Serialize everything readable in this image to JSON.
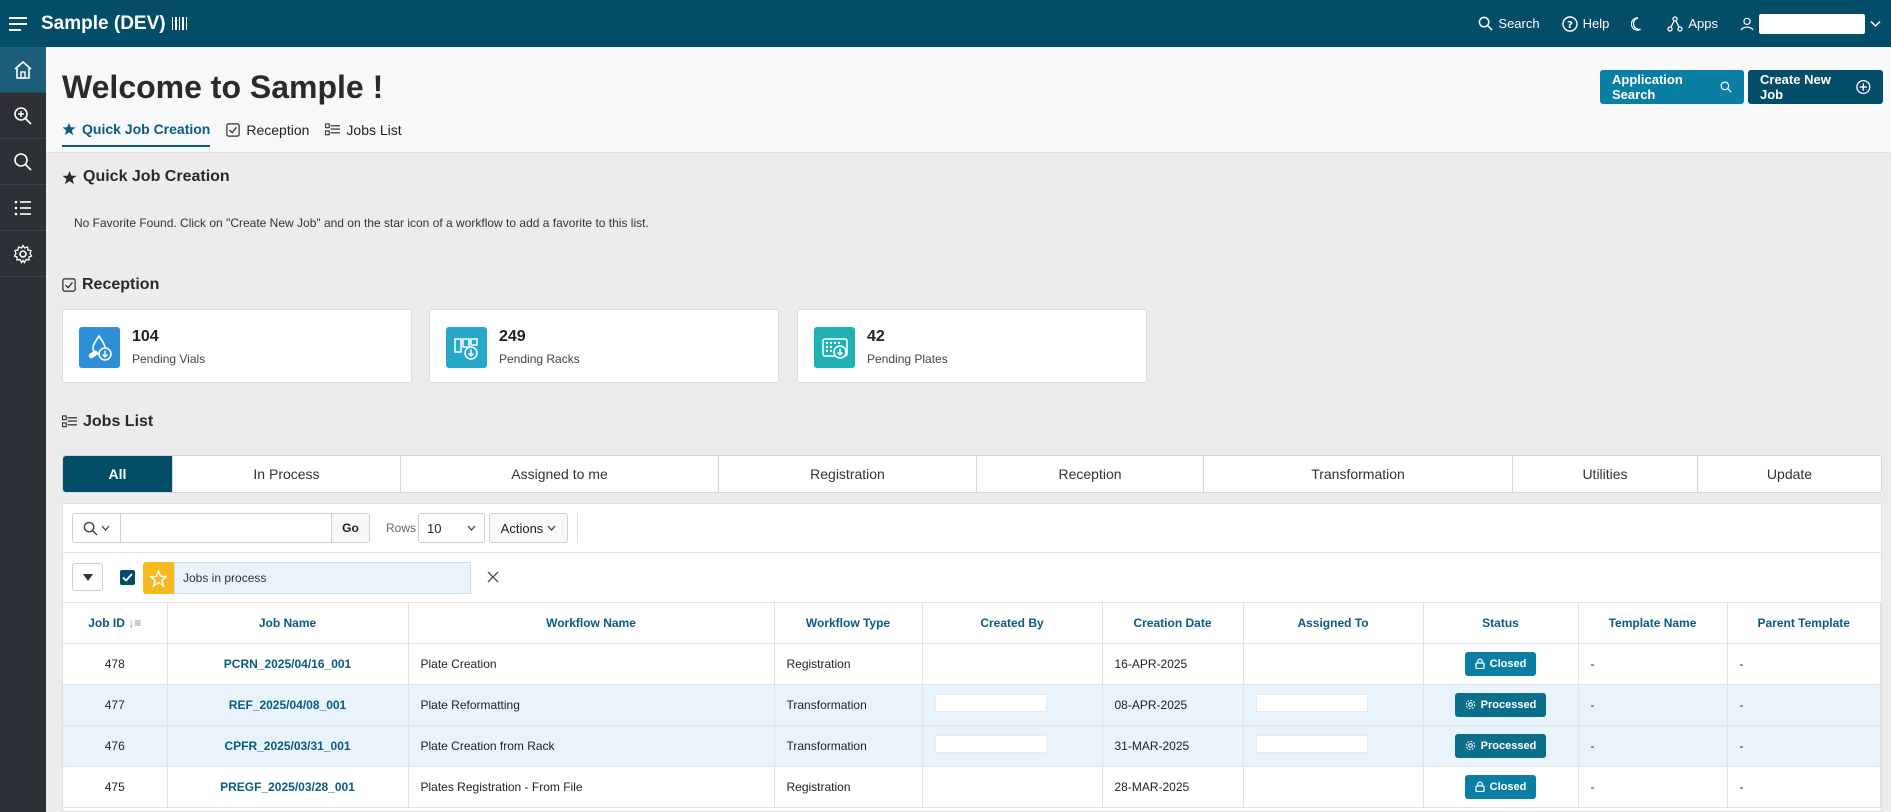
{
  "header": {
    "app_title": "Sample (DEV)",
    "search_label": "Search",
    "help_label": "Help",
    "apps_label": "Apps"
  },
  "sidebar": {
    "items": [
      {
        "name": "home",
        "icon": "home-icon",
        "active": true
      },
      {
        "name": "zoom",
        "icon": "zoom-in-icon"
      },
      {
        "name": "search",
        "icon": "search-icon"
      },
      {
        "name": "list",
        "icon": "list-icon"
      },
      {
        "name": "settings",
        "icon": "gear-icon"
      }
    ]
  },
  "page": {
    "title": "Welcome to Sample !",
    "tabs": [
      "Quick Job Creation",
      "Reception",
      "Jobs List"
    ],
    "application_search_label": "Application Search",
    "create_new_job_label": "Create New Job"
  },
  "quick_job_creation": {
    "title": "Quick Job Creation",
    "message": "No Favorite Found. Click on \"Create New Job\" and on the star icon of a workflow to add a favorite to this list."
  },
  "reception": {
    "title": "Reception",
    "cards": [
      {
        "value": "104",
        "label": "Pending Vials",
        "color": "#2e8fd6"
      },
      {
        "value": "249",
        "label": "Pending Racks",
        "color": "#26a9c9"
      },
      {
        "value": "42",
        "label": "Pending Plates",
        "color": "#20b2b2"
      }
    ]
  },
  "jobs_list": {
    "title": "Jobs List",
    "filter_tabs": [
      "All",
      "In Process",
      "Assigned to me",
      "Registration",
      "Reception",
      "Transformation",
      "Utilities",
      "Update"
    ],
    "toolbar": {
      "go_label": "Go",
      "rows_label": "Rows",
      "rows_value": "10",
      "actions_label": "Actions",
      "search_value": ""
    },
    "active_filter": "Jobs in process",
    "columns": [
      "Job ID",
      "Job Name",
      "Workflow Name",
      "Workflow Type",
      "Created By",
      "Creation Date",
      "Assigned To",
      "Status",
      "Template Name",
      "Parent Template"
    ],
    "rows": [
      {
        "id": "478",
        "name": "PCRN_2025/04/16_001",
        "workflow": "Plate Creation",
        "type": "Registration",
        "date": "16-APR-2025",
        "status": "Closed",
        "template": "-",
        "parent": "-"
      },
      {
        "id": "477",
        "name": "REF_2025/04/08_001",
        "workflow": "Plate Reformatting",
        "type": "Transformation",
        "date": "08-APR-2025",
        "status": "Processed",
        "template": "-",
        "parent": "-"
      },
      {
        "id": "476",
        "name": "CPFR_2025/03/31_001",
        "workflow": "Plate Creation from Rack",
        "type": "Transformation",
        "date": "31-MAR-2025",
        "status": "Processed",
        "template": "-",
        "parent": "-"
      },
      {
        "id": "475",
        "name": "PREGF_2025/03/28_001",
        "workflow": "Plates Registration - From File",
        "type": "Registration",
        "date": "28-MAR-2025",
        "status": "Closed",
        "template": "-",
        "parent": "-"
      }
    ]
  }
}
